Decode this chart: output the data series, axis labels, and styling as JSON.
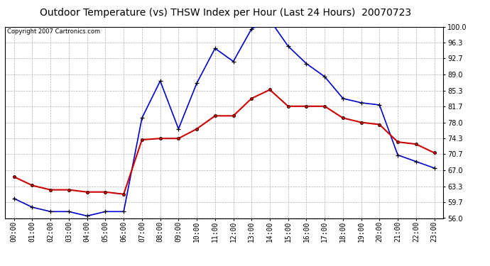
{
  "title": "Outdoor Temperature (vs) THSW Index per Hour (Last 24 Hours)  20070723",
  "copyright": "Copyright 2007 Cartronics.com",
  "hours": [
    "00:00",
    "01:00",
    "02:00",
    "03:00",
    "04:00",
    "05:00",
    "06:00",
    "07:00",
    "08:00",
    "09:00",
    "10:00",
    "11:00",
    "12:00",
    "13:00",
    "14:00",
    "15:00",
    "16:00",
    "17:00",
    "18:00",
    "19:00",
    "20:00",
    "21:00",
    "22:00",
    "23:00"
  ],
  "temp_red": [
    65.5,
    63.5,
    62.5,
    62.5,
    62.0,
    62.0,
    61.5,
    74.0,
    74.3,
    74.3,
    76.5,
    79.5,
    79.5,
    83.5,
    85.5,
    81.7,
    81.7,
    81.7,
    79.0,
    78.0,
    77.5,
    73.5,
    73.0,
    71.0
  ],
  "thsw_blue": [
    60.5,
    58.5,
    57.5,
    57.5,
    56.5,
    57.5,
    57.5,
    79.0,
    87.5,
    76.5,
    87.0,
    95.0,
    92.0,
    99.5,
    101.5,
    95.5,
    91.5,
    88.5,
    83.5,
    82.5,
    82.0,
    70.5,
    69.0,
    67.5
  ],
  "ylim": [
    56.0,
    100.0
  ],
  "yticks": [
    56.0,
    59.7,
    63.3,
    67.0,
    70.7,
    74.3,
    78.0,
    81.7,
    85.3,
    89.0,
    92.7,
    96.3,
    100.0
  ],
  "red_color": "#cc0000",
  "blue_color": "#0000cc",
  "bg_color": "#ffffff",
  "grid_color": "#aaaaaa",
  "title_fontsize": 10,
  "copyright_fontsize": 6,
  "tick_fontsize": 7
}
